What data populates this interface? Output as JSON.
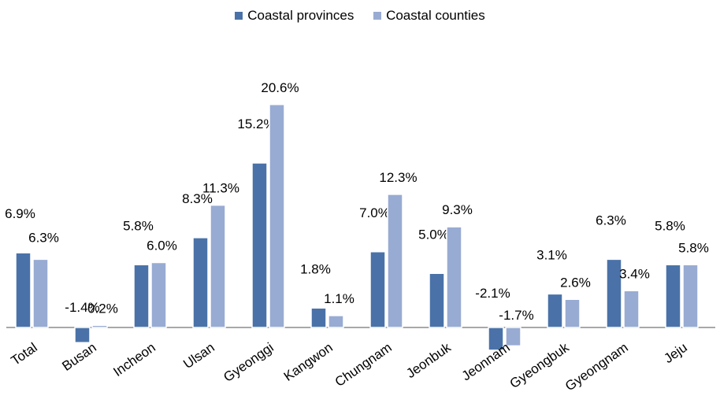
{
  "colors": {
    "series1": "#4a72a8",
    "series2": "#98abd2",
    "axis": "#8c8c8c"
  },
  "chart_data": {
    "type": "bar",
    "title": "",
    "xlabel": "",
    "ylabel": "",
    "ylim": [
      -3,
      22
    ],
    "grid": false,
    "legend_position": "top-center",
    "categories": [
      "Total",
      "Busan",
      "Incheon",
      "Ulsan",
      "Gyeonggi",
      "Kangwon",
      "Chungnam",
      "Jeonbuk",
      "Jeonnam",
      "Gyeongbuk",
      "Gyeongnam",
      "Jeju"
    ],
    "series": [
      {
        "name": "Coastal provinces",
        "values": [
          6.9,
          -1.4,
          5.8,
          8.3,
          15.2,
          1.8,
          7.0,
          5.0,
          -2.1,
          3.1,
          6.3,
          5.8
        ],
        "labels": [
          "6.9%",
          "-1.4%",
          "5.8%",
          "8.3%",
          "15.2%",
          "1.8%",
          "7.0%",
          "5.0%",
          "-2.1%",
          "3.1%",
          "6.3%",
          "5.8%"
        ]
      },
      {
        "name": "Coastal counties",
        "values": [
          6.3,
          0.2,
          6.0,
          11.3,
          20.6,
          1.1,
          12.3,
          9.3,
          -1.7,
          2.6,
          3.4,
          5.8
        ],
        "labels": [
          "6.3%",
          "0.2%",
          "6.0%",
          "11.3%",
          "20.6%",
          "1.1%",
          "12.3%",
          "9.3%",
          "-1.7%",
          "2.6%",
          "3.4%",
          "5.8%"
        ]
      }
    ]
  }
}
